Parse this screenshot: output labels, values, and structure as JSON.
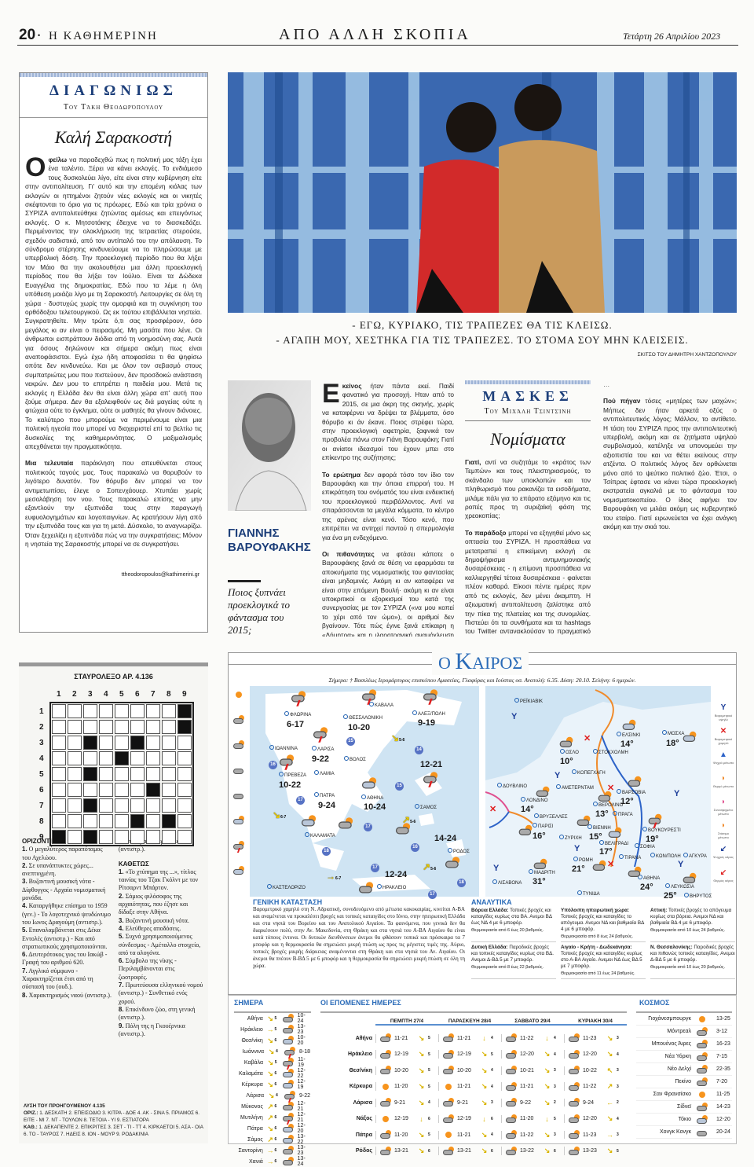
{
  "header": {
    "page_number": "20",
    "paper": "Η ΚΑΘΗΜΕΡΙΝΗ",
    "section": "ΑΠΟ ΑΛΛΗ ΣΚΟΠΙΑ",
    "date": "Τετάρτη 26 Απριλίου 2023"
  },
  "column1": {
    "kicker": "ΔΙΑΓΩΝΙΩΣ",
    "byline": "Του Τάκη Θεοδωρόπουλου",
    "title": "Καλή Σαρακοστή",
    "drop": "Ο",
    "lead": "φείλω",
    "p1": " να παραδεχθώ πως η πολιτική μας τάξη έχει ένα ταλέντο. Ξέρει να κάνει εκλογές. Το ενδιάμεσο τους δυσκολεύει λίγο, είτε είναι στην κυβέρνηση είτε στην αντιπολίτευση. Γι' αυτό και την επομένη κιόλας των εκλογών οι ηττημένοι ζητούν νέες εκλογές και οι νικητές σκέφτονται το όριο για τις πρόωρες. Εδώ και τρία χρόνια ο ΣΥΡΙΖΑ αντιπολιτεύθηκε ζητώντας αμέσως και επειγόντως εκλογές. Ο κ. Μητσοτάκης έδειχνε να το διασκεδάζει. Περιμένοντας την ολοκλήρωση της τετραετίας στερούσε, σχεδόν σαδιστικά, από τον αντίπαλό του την απόλαυση. Το σύνδρομο στέρησης κινδυνεύουμε να το πληρώσουμε με υπερβολική δόση. Την προεκλογική περίοδο που θα λήξει τον Μάιο θα την ακολουθήσει μια άλλη προεκλογική περίοδος που θα λήξει τον Ιούλιο. Είναι τα Δώδεκα Ευαγγέλια της δημοκρατίας. Εδώ που τα λέμε η όλη υπόθεση μοιάζει λίγο με τη Σαρακοστή. Λειτουργίες σε όλη τη χώρα · δυστυχώς χωρίς την ομορφιά και τη συγκίνηση του ορθόδοξου τελετουργικού. Ως εκ τούτου επιβάλλεται νηστεία. Συγκρατηθείτε. Μην τρώτε ό,τι σας προσφέρουν, όσο μεγάλος κι αν είναι ο πειρασμός. Μη μασάτε που λένε. Οι άνθρωποι εισπράττουν διόδια από τη νοημοσύνη σας. Αυτά για όσους δηλώνουν και σήμερα ακόμη πως είναι αναποφάσιστοι. Εγώ έχω ήδη αποφασίσει τι θα ψηφίσω οπότε δεν κινδυνεύω. Και με όλον τον σεβασμό στους συμπατριώτες μου που πιστεύουν, δεν προσδοκώ ανάσταση νεκρών. Δεν μου το επιτρέπει η παιδεία μου. Μετά τις εκλογές η Ελλάδα δεν θα είναι άλλη χώρα απ' αυτή που ζούμε σήμερα. Δεν θα εξαλειφθούν ως διά μαγείας ούτε η φτώχεια ούτε το έγκλημα, ούτε οι μαθητές θα γίνουν διάνοιες. Το καλύτερο που μπορούμε να περιμένουμε είναι μια πολιτική ηγεσία που μπορεί να διαχειριστεί επί τα βελτίω τις δυσκολίες της καθημερινότητας. Ο μαξιμαλισμός απεχθάνεται την πραγματικότητα.",
    "lead2": "Μια τελευταία",
    "p2": " παράκληση που απευθύνεται στους πολιτικούς ταγούς μας. Τους παρακαλώ να θορυβούν το λιγότερο δυνατόν. Τον θόρυβο δεν μπορεί να τον αντιμετωπίσει, έλεγε ο Σοπενχάουερ. Χτυπάει χωρίς μεσολάβηση τον νου. Τους παρακαλώ επίσης να μην εξαντλούν την εξυπνάδα τους στην παραγωγή ευφυολογημάτων και λογοπαιγνίων. Ας κρατήσουν λίγη από την εξυπνάδα τους και για τη μετά. Δύσκολο, το αναγνωρίζω. Όταν ξεχειλίζει η εξυπνάδα πώς να την συγκρατήσεις; Μόνον η νηστεία της Σαρακοστής μπορεί να σε συγκρατήσει.",
    "email": "ttheodoropoulos@kathimerini.gr"
  },
  "cartoon": {
    "line1": "- ΕΓΩ, ΚΥΡΙΑΚΟ, ΤΙΣ ΤΡΑΠΕΖΕΣ ΘΑ ΤΙΣ ΚΛΕΙΣΩ.",
    "line2": "- ΑΓΑΠΗ ΜΟΥ, ΧΕΣΤΗΚΑ ΓΙΑ ΤΙΣ ΤΡΑΠΕΖΕΣ. ΤΟ ΣΤΟΜΑ ΣΟΥ ΜΗΝ ΚΛΕΙΣΕΙΣ.",
    "credit": "ΣΚΙΤΣΟ ΤΟΥ ΔΗΜΗΤΡΗ ΧΑΝΤΖΟΠΟΥΛΟΥ"
  },
  "varoufakis": {
    "name1": "ΓΙΑΝΝΗΣ",
    "name2": "ΒΑΡΟΥΦΑΚΗΣ",
    "subtitle": "Ποιος ξυπνάει προεκλογικά το φάντασμα του 2015;",
    "drop": "Ε",
    "lead": "κείνος",
    "p1": " ήταν πάντα εκεί. Παιδί φανατικό για προσοχή. Ηταν από το 2015, σε μια άκρη της σκηνής, χωρίς να καταφέρνει να δρέψει τα βλέμματα, όσο θόρυβο κι άν έκανε. Ποιος στρέφει τώρα, στην προεκλογική αφετηρία, ξαφνικά τον προβολέα πάνω στον Γιάνη Βαρουφάκη; Γιατί οι ανίατοι ιδεασμοί του έχουν μπει στο επίκεντρο της συζήτησης;",
    "lead2": "Το ερώτημα",
    "p2": " δεν αφορά τόσο τον ίδιο τον Βαρουφάκη και την όποια επιρροή του. Η επικράτηση του ονόματός του είναι ενδεικτική του προεκλογικού περιβάλλοντος. Αντί να σπαράσσονται τα μεγάλα κόμματα, το κέντρο της αρένας είναι κενό. Τόσο κενό, που επιτρέπει να αντηχεί παντού η σπερμολογία για ένα μη ενδεχόμενο.",
    "lead3": "Οι πιθανότητες",
    "p3": " να φτάσει κάποτε ο Βαρουφάκης ξανά σε θέση να εφαρμόσει τα αποκυήματα της νομισματικής του φαντασίας είναι μηδαμινές. Ακόμη κι αν καταφέρει να είναι στην επόμενη Βουλή· ακόμη κι αν είναι υποκριτικοί οι εξορκισμοί του κατά της συνεργασίας με τον ΣΥΡΙΖΑ («να μου κοπεί το χέρι από τον ώμο»), οι αριθμοί δεν βγαίνουν. Τότε πώς έγινε ξανά επίκαιρη η «Δήμητρα» και η ιλαροτραγική αναμόχλευση του 2015;"
  },
  "column2": {
    "kicker": "ΜΑΣΚΕΣ",
    "byline": "Του Μιχάλη Τσιντσίνη",
    "title": "Νομίσματα",
    "lead": "Γιατί,",
    "p1": " αντί να συζητάμε το «κράτος των Τεμπών» και τους πλειστηριασμούς, το σκάνδαλο των υποκλοπών και τον πληθωρισμό που ρακανίζει τα εισοδήματα, μιλάμε πάλι για το επάρατο εξάμηνο και τις ροπές προς τη συριζαϊκή φάση της χρεοκοπίας;",
    "lead2": "Το παράδοξο",
    "p2": " μπορεί να εξηγηθεί μόνο ως οπτασία του ΣΥΡΙΖΑ. Η προσπάθεια να μετατραπεί η επικείμενη εκλογή σε δημοψήφισμα αντιμνημονιακής δυσαρέσκειας - η επίμονη προσπάθεια να καλλιεργηθεί τέτοια δυσαρέσκεια - φαίνεται πλέον καθαρά. Είκοσι πέντε ημέρες πριν από τις εκλογές, δεν μένει άκαμπτη. Η αξιωματική αντιπολίτευση ζαλίστηκε από την πίκα της πλατείας και της συνομιλίας. Πιστεύει ότι τα συνθήματα και τα hashtags του Twitter αντανακλούσαν το πραγματικό κοινωνικό κλίμα. Τώρα, που ο απόηχος εκείνων των εξάρσεων έχει σβήσει, χωρίς να έχει αλλάξει τα δημοσκοπικά δεδομένα, για τον ΣΥΡΙΖΑ φταίνε πάλι οι δημοσκόποι και οι εικαζόμενες σταθμίσεις τους. Το αποτέλεσμα είναι ότι απουσιάζουν σχεδόν εντελώς από τη δημόσια συζήτηση τα κυβερνητικά πεπραγμένα. Η αντιπαράθεση εξαντλείται στη διαδικασία: Στις δημοσκοπήσεις και τους όρους μιας πιθανής τηλεμαχίας.",
    "lead3": "Πού πήγαν",
    "p3": " τόσες «μητέρες των μαχών»; Μήπως δεν ήταν αρκετά οξύς ο αντιπολιτευτικός λόγος; Μάλλον, το αντίθετο. Η τάση του ΣΥΡΙΖΑ προς την αντιπολιτευτική υπερβολή, ακόμη και σε ζητήματα υψηλού συμβολισμού, κατέληξε να υπονομεύει την αξιοπιστία του και να θέτει εκείνους στην ατζέντα. Ο πολιτικός λόγος δεν ορθώνεται μόνο από το ψεύτικο πολιτικό ζώο. Έτσι, ο Τσίπρας έφτασε να κάνει τώρα προεκλογική εκστρατεία αγκαλιά με το φάντασμα του νομισματοκοπείου. Ο ίδιος αφήνει τον Βαρουφάκη να μιλάει ακόμη ως κυβερνητικό του εταίρο. Γιατί ειρωνεύεται να έχει ανάγκη ακόμη και την σκιά του."
  },
  "weather": {
    "title_o": "Ο",
    "title_k": "Κ",
    "title_rest": "ΑΙΡΟΣ",
    "today_line": "Σήμερα: † Βασιλέως Ιερομάρτυρος επισκόπου Αμασείας, Γλαφύρας και Ιούστας οσ. Ανατολή: 6.35. Δύση: 20.10. Σελήνη: 6 ημερών.",
    "greece_cities": [
      "ΦΛΩΡΙΝΑ",
      "ΘΕΣΣΑΛΟΝΙΚΗ",
      "ΚΑΒΑΛΑ",
      "ΑΛΕΞ/ΠΟΛΗ",
      "ΙΩΑΝΝΙΝΑ",
      "ΛΑΡΙΣΑ",
      "ΒΟΛΟΣ",
      "ΠΡΕΒΕΖΑ",
      "ΛΑΜΙΑ",
      "ΠΑΤΡΑ",
      "ΑΘΗΝΑ",
      "ΣΑΜΟΣ",
      "ΚΑΛΑΜΑΤΑ",
      "ΡΟΔΟΣ",
      "ΗΡΑΚΛΕΙΟ",
      "ΚΑΣΤΕΛΟΡΙΖΟ"
    ],
    "greece_temps": [
      "6-17",
      "10-20",
      "9-19",
      "9-22",
      "10-22",
      "12-21",
      "9-24",
      "10-24",
      "14-24",
      "12-24"
    ],
    "sea_temps": [
      "15",
      "14",
      "16",
      "15",
      "17",
      "17",
      "18",
      "16",
      "17",
      "18",
      "17"
    ],
    "wind_labels": [
      "5-6",
      "6-7",
      "5-6",
      "6-7",
      "5-6"
    ],
    "europe_cities": [
      "ΡΕΪΚΙΑΒΙΚ",
      "ΕΛΣΙΝΚΙ",
      "ΜΟΣΧΑ",
      "ΟΣΛΟ",
      "ΣΤΟΚΧΟΛΜΗ",
      "ΚΟΠΕΓΧΑΓΗ",
      "ΔΟΥΒΛΙΝΟ",
      "ΑΜΣΤΕΡΝΤΑΜ",
      "ΒΑΡΣΟΒΙΑ",
      "ΛΟΝΔΙΝΟ",
      "ΒΕΡΟΛΙΝΟ",
      "ΠΡΑΓΑ",
      "ΒΡΥΞΕΛΛΕΣ",
      "ΠΑΡΙΣΙ",
      "ΒΙΕΝΝΗ",
      "ΖΥΡΙΧΗ",
      "ΒΟΥΚΟΥΡΕΣΤΙ",
      "ΒΕΛΙΓΡΑΔΙ",
      "ΣΟΦΙΑ",
      "ΚΩΝ/ΠΟΛΗ",
      "ΑΓΚΥΡΑ",
      "ΤΙΡΑΝΑ",
      "ΡΩΜΗ",
      "ΜΑΔΡΙΤΗ",
      "ΛΙΣΑΒΟΝΑ",
      "ΑΘΗΝΑ",
      "ΛΕΥΚΩΣΙΑ",
      "ΒΗΡΥΤΟΣ",
      "ΤΥΝΙΔΑ"
    ],
    "europe_temps": [
      "14°",
      "18°",
      "10°",
      "12°",
      "14°",
      "13°",
      "16°",
      "15°",
      "19°",
      "17°",
      "21°",
      "31°",
      "24°",
      "25°"
    ],
    "legend_right": [
      "Βαρομετρικό υψηλό",
      "Βαρομετρικό χαμηλό",
      "Ψυχρό μέτωπο",
      "Θερμό μέτωπο",
      "Συνεσφιγμένο μέτωπο",
      "Στάσιμο μέτωπο",
      "Ψυχρός αέρας",
      "Θερμός αέρας"
    ],
    "general_title": "ΓΕΝΙΚΗ ΚΑΤΑΣΤΑΣΗ",
    "general_text": "Βαρομετρικό χαμηλό στη Ν. Αδριατική, συνοδευόμενο από μέτωπα κακοκαιρίας, κινείται Α-ΒΑ και αναμένεται να προκαλέσει βροχές και τοπικές καταιγίδες στο Ιόνιο, στην ηπειρωτική Ελλάδα και στα νησιά του Βορείου και του Ανατολικού Αιγαίου. Τα φαινόμενα, που γενικά δεν θα διαρκέσουν πολύ, στην Αν. Μακεδονία, στη Θράκη και στα νησιά του Α-ΒΑ Αιγαίου θα είναι κατά τόπους έντονα. Οι δυτικών διευθύνσεων άνεμοι θα φθάσουν τοπικά και πρόσκαιρα τα 7 μποφόρ και η θερμοκρασία θα σημειώσει μικρή πτώση ως προς τις μέγιστες τιμές της. Αύριο, τοπικές βροχές μικρής διάρκειας αναμένονται στη Θράκη και στα νησιά του Αν. Αιγαίου. Οι άνεμοι θα πνέουν Β-ΒΔ 5 με 6 μποφόρ και η θερμοκρασία θα σημειώσει μικρή πτώση σε όλη τη χώρα.",
    "analytic_title": "ΑΝΑΛΥΤΙΚΑ",
    "regions": [
      {
        "name": "Βόρεια Ελλάδα:",
        "text": " Τοπικές βροχές και καταιγίδες κυρίως στα ΒΑ. Ανεμοι ΒΔ έως ΝΔ 4 με 6 μποφόρ.",
        "temp": "Θερμοκρασία από 6 έως 20 βαθμούς."
      },
      {
        "name": "Υπόλοιπη ηπειρωτική χώρα:",
        "text": " Τοπικές βροχές και καταιγίδες το απόγευμα. Ανεμοι ΝΔ και βαθμιαία ΒΔ 4 με 6 μποφόρ.",
        "temp": "Θερμοκρασία από 8 έως 24 βαθμούς."
      },
      {
        "name": "Αττική:",
        "text": " Τοπικές βροχές το απόγευμα κυρίως στα βόρεια. Ανεμοι ΝΔ και βαθμιαία ΒΔ 4 με 6 μποφόρ.",
        "temp": "Θερμοκρασία από 10 έως 24 βαθμούς."
      },
      {
        "name": "Δυτική Ελλάδα:",
        "text": " Παροδικές βροχές και τοπικές καταιγίδες κυρίως στα ΒΔ. Ανεμοι Δ-ΒΔ 5 με 7 μποφόρ.",
        "temp": "Θερμοκρασία από 8 έως 22 βαθμούς."
      },
      {
        "name": "Αιγαίο - Κρήτη - Δωδεκάνησα:",
        "text": " Τοπικές βροχές και καταιγίδες κυρίως στο Α-ΒΑ Αιγαίο. Ανεμοι ΝΔ έως ΒΔ 5 με 7 μποφόρ.",
        "temp": "Θερμοκρασία από 11 έως 24 βαθμούς."
      },
      {
        "name": "Ν. Θεσσαλονίκης:",
        "text": " Παροδικές βροχές και πιθανώς τοπικές καταιγίδες. Ανεμοι Δ-ΒΔ 5 με 6 μποφόρ.",
        "temp": "Θερμοκρασία από 10 έως 20 βαθμούς."
      }
    ],
    "today_title": "ΣΗΜΕΡΑ",
    "today": [
      {
        "city": "Αθήνα",
        "wind": "↘",
        "bf": "5",
        "icon": "cloud-sun",
        "t": "10-24"
      },
      {
        "city": "Ηράκλειο",
        "wind": "→",
        "bf": "5",
        "icon": "cloud-sun",
        "t": "13-23"
      },
      {
        "city": "Θεσ/νίκη",
        "wind": "↘",
        "bf": "6",
        "icon": "rain",
        "t": "10-20"
      },
      {
        "city": "Ιωάννινα",
        "wind": "↘",
        "bf": "4",
        "icon": "storm",
        "t": "8-18"
      },
      {
        "city": "Καβάλα",
        "wind": "↘",
        "bf": "5",
        "icon": "storm",
        "t": "11-19"
      },
      {
        "city": "Καλαμάτα",
        "wind": "↘",
        "bf": "6",
        "icon": "rain",
        "t": "12-22"
      },
      {
        "city": "Κέρκυρα",
        "wind": "↘",
        "bf": "6",
        "icon": "rain",
        "t": "12-19"
      },
      {
        "city": "Λάρισα",
        "wind": "↘",
        "bf": "4",
        "icon": "storm",
        "t": "9-22"
      },
      {
        "city": "Μύκονος",
        "wind": "↗",
        "bf": "6",
        "icon": "cloud-sun",
        "t": "12-21"
      },
      {
        "city": "Μυτιλήνη",
        "wind": "↗",
        "bf": "6",
        "icon": "storm",
        "t": "12-21"
      },
      {
        "city": "Πάτρα",
        "wind": "↘",
        "bf": "6",
        "icon": "rain",
        "t": "12-20"
      },
      {
        "city": "Σάμος",
        "wind": "↗",
        "bf": "6",
        "icon": "rain",
        "t": "13-22"
      },
      {
        "city": "Σαντορίνη",
        "wind": "→",
        "bf": "6",
        "icon": "cloud-sun",
        "t": "13-23"
      },
      {
        "city": "Χανιά",
        "wind": "→",
        "bf": "6",
        "icon": "cloud-sun",
        "t": "13-24"
      }
    ],
    "next_title": "ΟΙ ΕΠΟΜΕΝΕΣ ΗΜΕΡΕΣ",
    "days": [
      "ΠΕΜΠΤΗ 27/4",
      "ΠΑΡΑΣΚΕΥΗ 28/4",
      "ΣΑΒΒΑΤΟ 29/4",
      "ΚΥΡΙΑΚΗ 30/4"
    ],
    "next": [
      {
        "city": "Αθήνα",
        "d": [
          [
            "cloud-sun",
            "11-21",
            "↘",
            "5"
          ],
          [
            "cloud-sun",
            "11-21",
            "↓",
            "4"
          ],
          [
            "cloud-sun",
            "11-22",
            "↓",
            "4"
          ],
          [
            "cloud-sun",
            "11-23",
            "↘",
            "3"
          ]
        ]
      },
      {
        "city": "Ηράκλειο",
        "d": [
          [
            "cloud-sun",
            "12-19",
            "↘",
            "5"
          ],
          [
            "cloud-sun",
            "12-19",
            "↘",
            "5"
          ],
          [
            "cloud-sun",
            "12-20",
            "↘",
            "4"
          ],
          [
            "cloud-sun",
            "12-20",
            "↘",
            "4"
          ]
        ]
      },
      {
        "city": "Θεσ/νίκη",
        "d": [
          [
            "cloud-sun",
            "10-20",
            "↘",
            "5"
          ],
          [
            "cloud-sun",
            "10-20",
            "↘",
            "4"
          ],
          [
            "cloud-sun",
            "10-21",
            "↘",
            "3"
          ],
          [
            "cloud-sun",
            "10-22",
            "↖",
            "3"
          ]
        ]
      },
      {
        "city": "Κέρκυρα",
        "d": [
          [
            "sun",
            "11-20",
            "↘",
            "5"
          ],
          [
            "sun",
            "11-21",
            "↘",
            "4"
          ],
          [
            "cloud-sun",
            "11-21",
            "↘",
            "3"
          ],
          [
            "cloud-sun",
            "11-22",
            "↗",
            "3"
          ]
        ]
      },
      {
        "city": "Λάρισα",
        "d": [
          [
            "cloud-sun",
            "9-21",
            "↘",
            "4"
          ],
          [
            "cloud-sun",
            "9-21",
            "↘",
            "3"
          ],
          [
            "cloud-sun",
            "9-22",
            "↘",
            "2"
          ],
          [
            "cloud-sun",
            "9-24",
            "←",
            "2"
          ]
        ]
      },
      {
        "city": "Νάξος",
        "d": [
          [
            "sun",
            "12-19",
            "↓",
            "6"
          ],
          [
            "cloud-sun",
            "12-19",
            "↓",
            "6"
          ],
          [
            "cloud-sun",
            "11-20",
            "↓",
            "5"
          ],
          [
            "cloud-sun",
            "12-20",
            "↘",
            "4"
          ]
        ]
      },
      {
        "city": "Πάτρα",
        "d": [
          [
            "cloud-sun",
            "11-20",
            "↘",
            "5"
          ],
          [
            "sun",
            "11-21",
            "↘",
            "4"
          ],
          [
            "cloud-sun",
            "11-22",
            "↘",
            "3"
          ],
          [
            "cloud-sun",
            "11-23",
            "→",
            "3"
          ]
        ]
      },
      {
        "city": "Ρόδος",
        "d": [
          [
            "cloud-sun",
            "13-21",
            "↘",
            "6"
          ],
          [
            "cloud-sun",
            "13-21",
            "↘",
            "6"
          ],
          [
            "cloud-sun",
            "13-22",
            "↘",
            "6"
          ],
          [
            "cloud-sun",
            "13-23",
            "↘",
            "5"
          ]
        ]
      }
    ],
    "world_title": "ΚΟΣΜΟΣ",
    "world": [
      {
        "city": "Γιοχάνεσμπουργκ",
        "icon": "sun",
        "t": "13-25"
      },
      {
        "city": "Μόντρεαλ",
        "icon": "cloud-sun",
        "t": "3-12"
      },
      {
        "city": "Μπουένος Άιρες",
        "icon": "cloud-sun",
        "t": "16-23"
      },
      {
        "city": "Νέα Υόρκη",
        "icon": "cloud-sun",
        "t": "7-15"
      },
      {
        "city": "Νέο Δελχί",
        "icon": "cloud-sun",
        "t": "22-35"
      },
      {
        "city": "Πεκίνο",
        "icon": "cloud-sun",
        "t": "7-20"
      },
      {
        "city": "Σαν Φρανσίσκο",
        "icon": "sun",
        "t": "11-25"
      },
      {
        "city": "Σίδνεϊ",
        "icon": "cloud-sun",
        "t": "14-23"
      },
      {
        "city": "Τόκιο",
        "icon": "rain",
        "t": "12-20"
      },
      {
        "city": "Χονγκ Κονγκ",
        "icon": "cloud",
        "t": "20-24"
      }
    ]
  },
  "crossword": {
    "title": "ΣΤΑΥΡΟΛΕΞΟ ΑΡ. 4.136",
    "size": 9,
    "black": [
      [
        1,
        9
      ],
      [
        2,
        9
      ],
      [
        3,
        3
      ],
      [
        3,
        6
      ],
      [
        4,
        5
      ],
      [
        5,
        3
      ],
      [
        6,
        7
      ],
      [
        7,
        3
      ],
      [
        8,
        6
      ],
      [
        8,
        8
      ],
      [
        9,
        1
      ],
      [
        9,
        3
      ]
    ],
    "across_title": "ΟΡΙΖΟΝΤΙΩΣ",
    "across": [
      [
        "1.",
        "Ο μεγαλύτερος παραπόταμος του Αχελώου."
      ],
      [
        "2.",
        "Σε υπανάπτυκτες χώρες... ανεπτυγμένη."
      ],
      [
        "3.",
        "Βυζαντινή μουσική νότα - Δίφθογγος - Αρχαία νομισματική μονάδα."
      ],
      [
        "4.",
        "Καταργήθηκε επίσημα το 1959 (γεν.) - Το λογοτεχνικό ψευδώνυμο του Ιωνος Δραγούμη (αντιστρ.)."
      ],
      [
        "5.",
        "Επαναλαμβάνεται στις Δέκα Εντολές (αντιστρ.) - Και από στρατιωτικούς χρησιμοποιούνται."
      ],
      [
        "6.",
        "Δευτερότοκος γιος του Ιακώβ - Γραφή του αριθμού 620."
      ],
      [
        "7.",
        "Αγγλικό σύμφωνο - Χαρακτηρίζεται έτσι από τη σύστασή του (ουδ.)."
      ],
      [
        "8.",
        "Χαρακτηρισμός ναού (αντιστρ.)."
      ],
      [
        "9.",
        "Στάσιμα τα νερά του (αντιστρ.)."
      ]
    ],
    "down_title": "ΚΑΘΕΤΩΣ",
    "down": [
      [
        "1.",
        "«Το χτύπημα της ...», τίτλος ταινίας του Τζακ Γκόλντ με τον Ρίτσαρντ Μπάρτον."
      ],
      [
        "2.",
        "Σάμιος φιλόσοφος της αρχαιότητας, που έζησε και δίδαξε στην Αθήνα."
      ],
      [
        "3.",
        "Βυζαντινή μουσική νότα."
      ],
      [
        "4.",
        "Ελεύθερες αποδόσεις."
      ],
      [
        "5.",
        "Συχνά χρησιμοποιούμενος σύνδεσμος - Αμέταλλο στοιχείο, από τα αλογόνα."
      ],
      [
        "6.",
        "Σύμβολο της νίκης - Περιλαμβάνονται στις ζωοτροφές."
      ],
      [
        "7.",
        "Πρωτεύουσα ελληνικού νομού (αντιστρ.) - Συνθετικό ενός χορού."
      ],
      [
        "8.",
        "Επικίνδυνο ζώο, στη γενική (αντιστρ.)."
      ],
      [
        "9.",
        "Πόλη της η Γκουέρνικα (αντιστρ.)."
      ]
    ],
    "solution_title": "ΛΥΣΗ ΤΟΥ ΠΡΟΗΓΟΥΜΕΝΟΥ 4.135",
    "sol_across_label": "ΟΡΙΖ.:",
    "sol_across": " 1. ΔΕΣΚΑΤΗ 2. ΕΠΕΙΣΟΔΙΟ 3. ΚΙΤΡΑ - ΔΟΕ 4. ΑΚ - ΣΙΝΑ 5. ΠΡΙΑΜΟΣ 6. ΕΙΤΕ - ΜΙ 7. ΝΤ - ΤΟΥΛΟΝ 8. ΤΕΤΟΙΑ - ΥΙ 9. ΕΣΤΙΑΤΟΡΑ",
    "sol_down_label": "ΚΑΘ.:",
    "sol_down": " 1. ΔΕΚΑΠΕΝΤΕ 2. ΕΠΙΚΡΙΤΕΣ 3. ΣΕΤ - ΤΙ - ΤΤ 4. ΚΙΡΚΑΕΤΟΙ 5. ΑΣΑ - ΟΙΑ 6. ΤΟ - ΤΑΥΡΟΣ 7. ΗΔΕΙΣ 8. ΙΟΝ - ΜΟΥΡ 9. ΡΟΔΑΚΙΝΙΑ"
  },
  "colors": {
    "accent_blue": "#1d3f7a",
    "weather_blue": "#2a6bb8",
    "sea": "#cfe4f3",
    "sun": "#f7941d"
  }
}
